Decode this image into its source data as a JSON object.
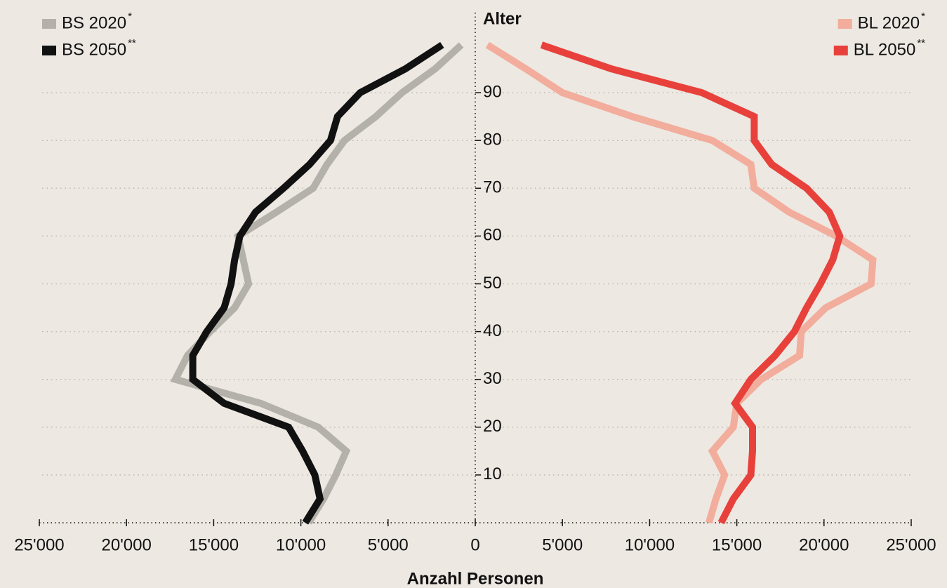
{
  "chart_data": {
    "type": "line",
    "y_title": "Alter",
    "x_title": "Anzahl Personen",
    "ages": [
      0,
      5,
      10,
      15,
      20,
      25,
      30,
      35,
      40,
      45,
      50,
      55,
      60,
      65,
      70,
      75,
      80,
      85,
      90,
      95,
      100
    ],
    "ylim": [
      0,
      100
    ],
    "yticks": [
      10,
      20,
      30,
      40,
      50,
      60,
      70,
      80,
      90
    ],
    "xlim": [
      -25000,
      25000
    ],
    "xticks": [
      {
        "value": -25000,
        "label": "25'000"
      },
      {
        "value": -20000,
        "label": "20'000"
      },
      {
        "value": -15000,
        "label": "15'000"
      },
      {
        "value": -10000,
        "label": "10'000"
      },
      {
        "value": -5000,
        "label": "5'000"
      },
      0,
      {
        "value": 5000,
        "label": "5'000"
      },
      {
        "value": 10000,
        "label": "10'000"
      },
      {
        "value": 15000,
        "label": "15'000"
      },
      {
        "value": 20000,
        "label": "20'000"
      },
      {
        "value": 25000,
        "label": "25'000"
      }
    ],
    "grid": true,
    "series": [
      {
        "name": "BS 2020",
        "marker": "*",
        "color": "#b4b1ab",
        "values": [
          -9550,
          -8700,
          -8000,
          -7400,
          -9000,
          -12300,
          -17200,
          -16500,
          -15200,
          -13800,
          -13000,
          -13300,
          -13600,
          -11400,
          -9300,
          -8500,
          -7500,
          -5700,
          -4200,
          -2300,
          -800
        ]
      },
      {
        "name": "BS 2050",
        "marker": "**",
        "color": "#111111",
        "values": [
          -9750,
          -8900,
          -9200,
          -9900,
          -10700,
          -14400,
          -16200,
          -16200,
          -15400,
          -14400,
          -14000,
          -13800,
          -13500,
          -12600,
          -11000,
          -9500,
          -8300,
          -7900,
          -6600,
          -4000,
          -1900
        ]
      },
      {
        "name": "BL 2020",
        "marker": "*",
        "color": "#f2ad9c",
        "values": [
          13400,
          13800,
          14300,
          13600,
          14800,
          15000,
          16400,
          18600,
          18700,
          20100,
          22700,
          22800,
          20700,
          18000,
          16000,
          15800,
          13600,
          9000,
          5000,
          2900,
          700
        ]
      },
      {
        "name": "BL 2050",
        "marker": "**",
        "color": "#e8413b",
        "values": [
          14100,
          14800,
          15800,
          15900,
          15900,
          14900,
          15800,
          17200,
          18300,
          19000,
          19800,
          20500,
          20900,
          20300,
          19000,
          17000,
          16000,
          16000,
          13000,
          7800,
          3800
        ]
      }
    ],
    "marker_color": "#e8413b"
  }
}
